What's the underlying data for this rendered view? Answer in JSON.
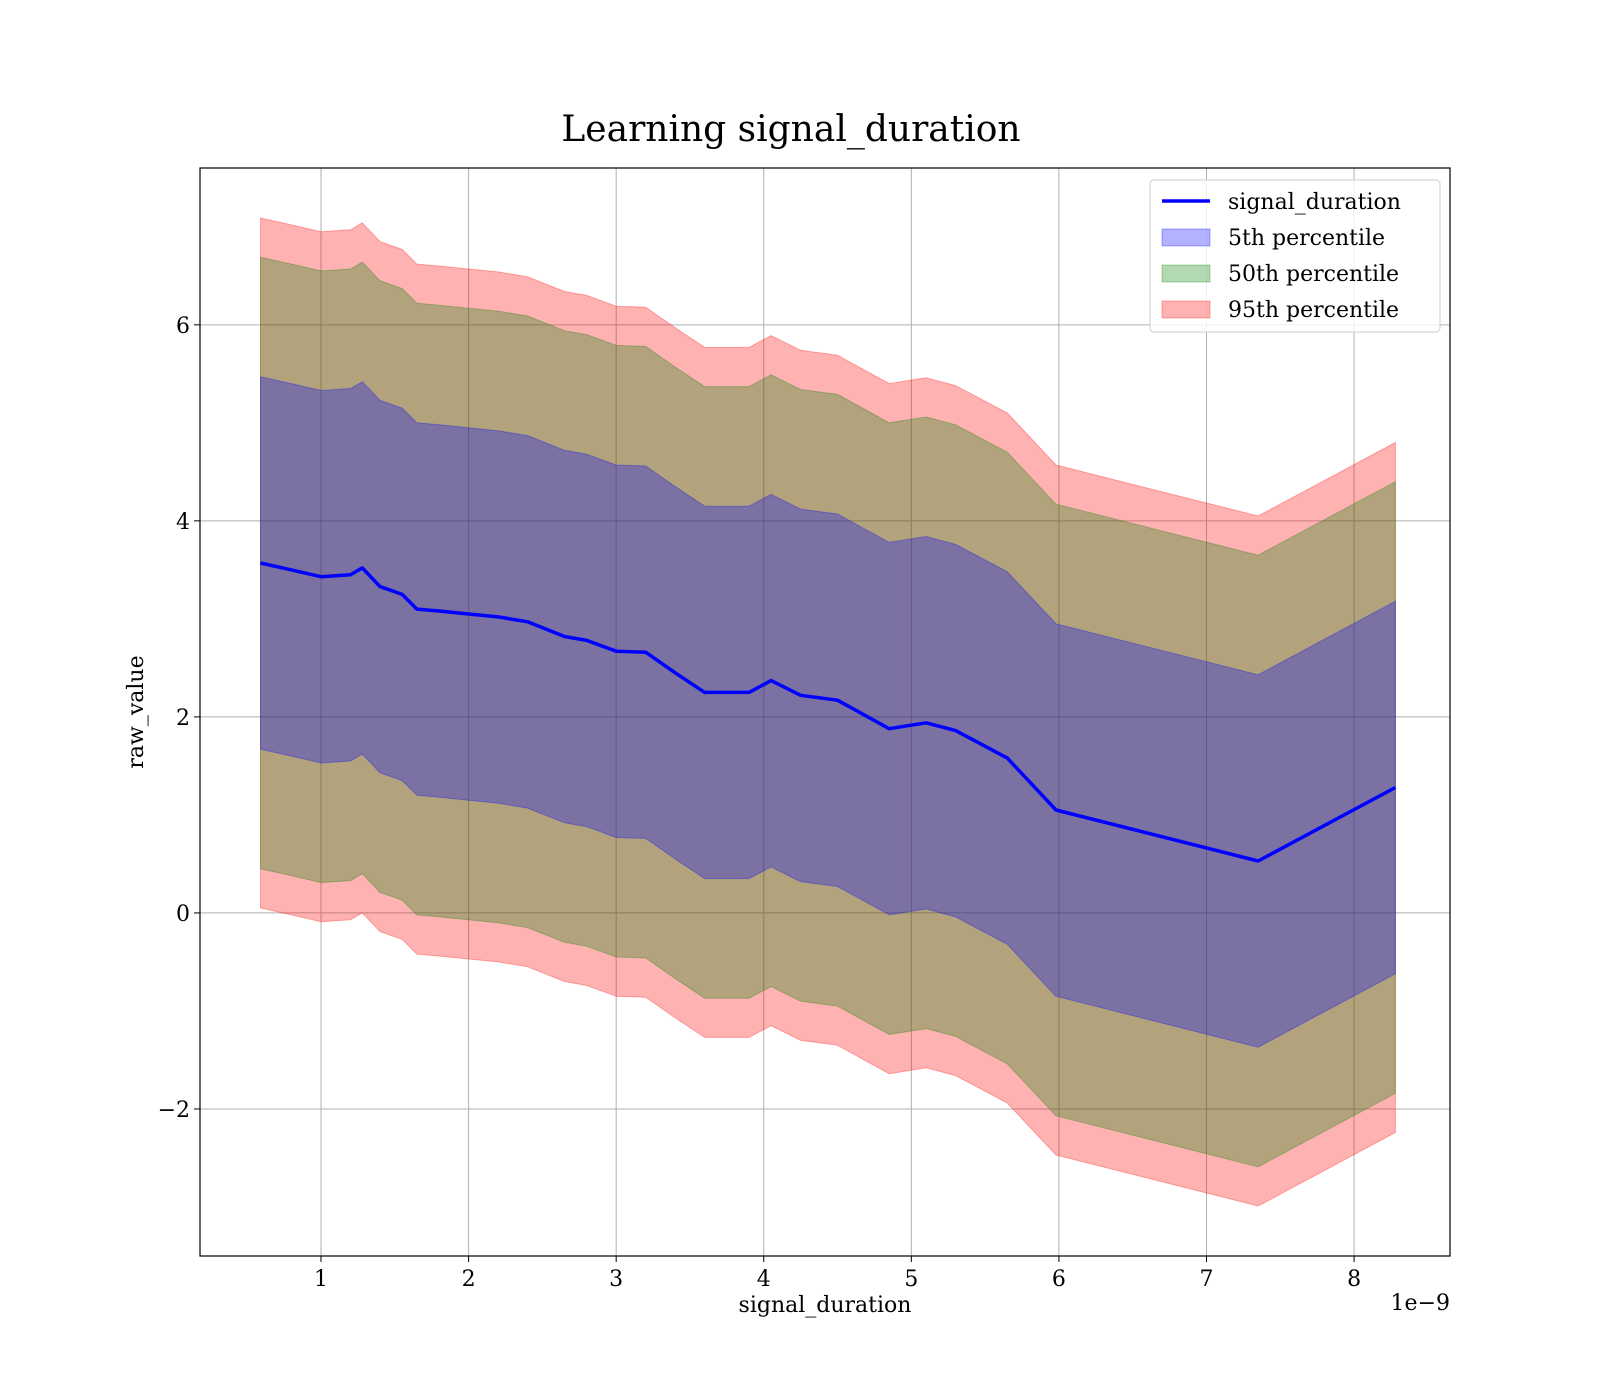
{
  "chart_data": {
    "type": "area",
    "title": "Learning signal_duration",
    "xlabel": "signal_duration",
    "ylabel": "raw_value",
    "x_offset_label": "1e−9",
    "xlim": [
      0.18,
      8.65
    ],
    "ylim": [
      -3.5,
      7.6
    ],
    "xticks": [
      1,
      2,
      3,
      4,
      5,
      6,
      7,
      8
    ],
    "xtick_labels": [
      "1",
      "2",
      "3",
      "4",
      "5",
      "6",
      "7",
      "8"
    ],
    "yticks": [
      -2,
      0,
      2,
      4,
      6
    ],
    "ytick_labels": [
      "−2",
      "0",
      "2",
      "4",
      "6"
    ],
    "grid": true,
    "legend_position": "top-right",
    "x": [
      0.59,
      0.8,
      1.0,
      1.2,
      1.28,
      1.4,
      1.55,
      1.65,
      1.8,
      2.0,
      2.2,
      2.4,
      2.65,
      2.8,
      3.0,
      3.2,
      3.4,
      3.6,
      3.9,
      4.05,
      4.25,
      4.5,
      4.85,
      5.1,
      5.3,
      5.65,
      5.98,
      7.35,
      8.28
    ],
    "series": [
      {
        "name": "signal_duration",
        "kind": "line",
        "color": "#0000ff",
        "values": [
          3.57,
          3.5,
          3.43,
          3.45,
          3.52,
          3.33,
          3.25,
          3.1,
          3.08,
          3.05,
          3.02,
          2.97,
          2.82,
          2.78,
          2.67,
          2.66,
          2.45,
          2.25,
          2.25,
          2.37,
          2.22,
          2.17,
          1.88,
          1.94,
          1.86,
          1.58,
          1.05,
          0.53,
          1.28
        ]
      },
      {
        "name": "5th percentile",
        "kind": "band",
        "color": "#0000ff",
        "opacity": 0.3,
        "values_hw": 1.9
      },
      {
        "name": "50th percentile",
        "kind": "band",
        "color": "#008000",
        "opacity": 0.3,
        "values_hw": 3.12
      },
      {
        "name": "95th percentile",
        "kind": "band",
        "color": "#ff0000",
        "opacity": 0.3,
        "values_hw": 3.52
      }
    ]
  }
}
